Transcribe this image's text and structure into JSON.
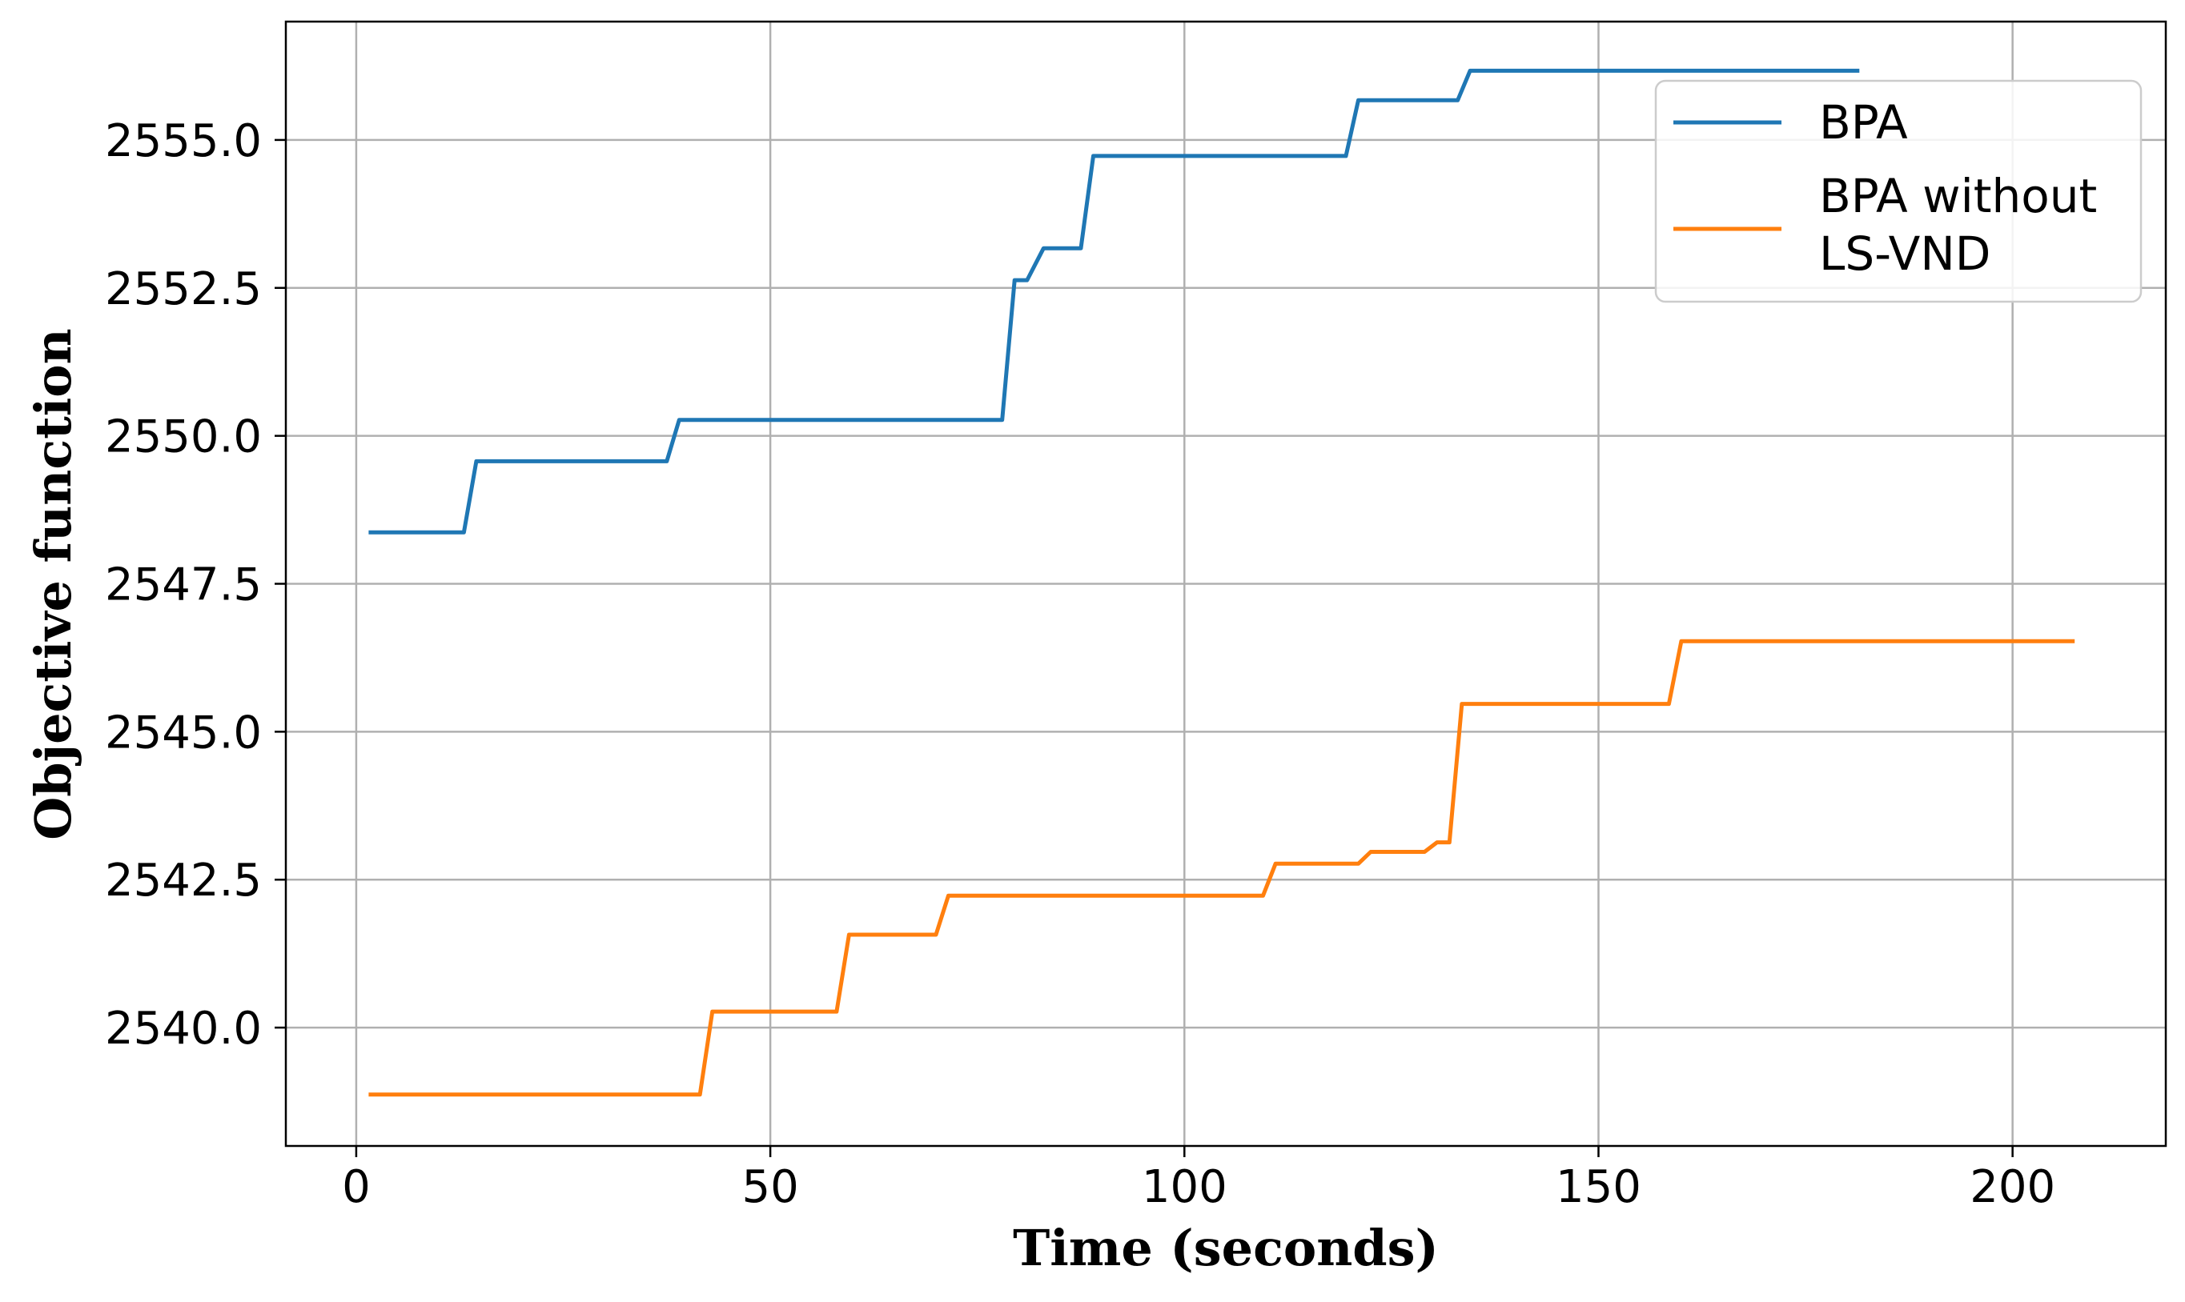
{
  "chart_data": {
    "type": "line",
    "title": "",
    "xlabel": "Time (seconds)",
    "ylabel": "Objective function",
    "xlim": [
      -8.5,
      218.5
    ],
    "ylim": [
      2538.0,
      2557.0
    ],
    "xticks": [
      0,
      50,
      100,
      150,
      200
    ],
    "xtick_labels": [
      "0",
      "50",
      "100",
      "150",
      "200"
    ],
    "yticks": [
      2540.0,
      2542.5,
      2545.0,
      2547.5,
      2550.0,
      2552.5,
      2555.0
    ],
    "ytick_labels": [
      "2540.0",
      "2542.5",
      "2545.0",
      "2547.5",
      "2550.0",
      "2552.5",
      "2555.0"
    ],
    "grid": true,
    "legend_position": "top-right",
    "series": [
      {
        "name": "BPA",
        "color": "#1f77b4",
        "points": [
          [
            1.5,
            2548.37
          ],
          [
            13.0,
            2548.37
          ],
          [
            14.5,
            2549.57
          ],
          [
            37.5,
            2549.57
          ],
          [
            39.0,
            2550.27
          ],
          [
            78.0,
            2550.27
          ],
          [
            79.5,
            2552.63
          ],
          [
            81.0,
            2552.63
          ],
          [
            83.0,
            2553.17
          ],
          [
            87.5,
            2553.17
          ],
          [
            89.0,
            2554.73
          ],
          [
            119.5,
            2554.73
          ],
          [
            121.0,
            2555.67
          ],
          [
            133.0,
            2555.67
          ],
          [
            134.5,
            2556.17
          ],
          [
            181.5,
            2556.17
          ]
        ]
      },
      {
        "name": "BPA without LS-VND",
        "legend_lines": [
          "BPA without",
          "LS-VND"
        ],
        "color": "#ff7f0e",
        "points": [
          [
            1.5,
            2538.87
          ],
          [
            41.5,
            2538.87
          ],
          [
            43.0,
            2540.27
          ],
          [
            58.0,
            2540.27
          ],
          [
            59.5,
            2541.57
          ],
          [
            70.0,
            2541.57
          ],
          [
            71.5,
            2542.23
          ],
          [
            109.5,
            2542.23
          ],
          [
            111.0,
            2542.77
          ],
          [
            121.0,
            2542.77
          ],
          [
            122.5,
            2542.97
          ],
          [
            129.0,
            2542.97
          ],
          [
            130.5,
            2543.13
          ],
          [
            132.0,
            2543.13
          ],
          [
            133.5,
            2545.47
          ],
          [
            158.5,
            2545.47
          ],
          [
            160.0,
            2546.53
          ],
          [
            207.5,
            2546.53
          ]
        ]
      }
    ]
  }
}
